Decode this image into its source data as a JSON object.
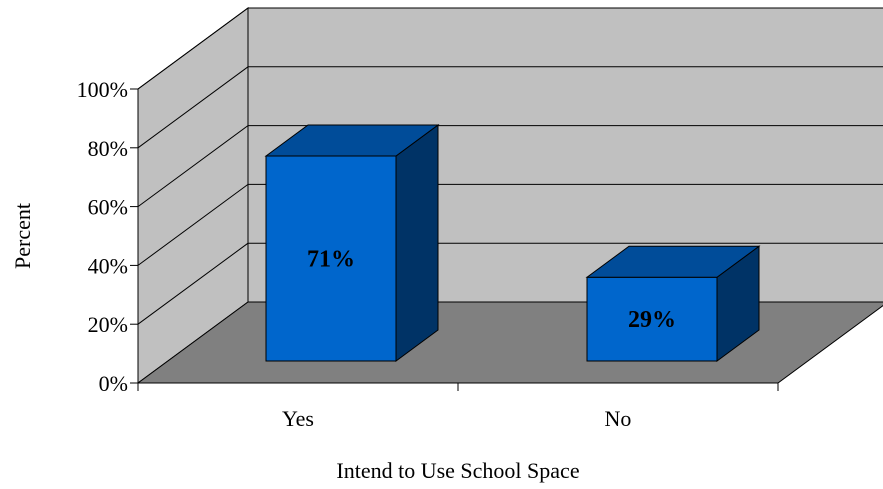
{
  "chart_data": {
    "type": "bar",
    "categories": [
      "Yes",
      "No"
    ],
    "values": [
      71,
      29
    ],
    "data_labels": [
      "71%",
      "29%"
    ],
    "xlabel": "Intend to Use School Space",
    "ylabel": "Percent",
    "ylim": [
      0,
      100
    ],
    "ytick_labels": [
      "0%",
      "20%",
      "40%",
      "60%",
      "80%",
      "100%"
    ],
    "grid": true,
    "style": "3d-column",
    "colors": {
      "bar_front": "#0066cc",
      "bar_side": "#003366",
      "bar_top": "#004c99",
      "back_wall": "#c0c0c0",
      "floor": "#808080"
    }
  }
}
